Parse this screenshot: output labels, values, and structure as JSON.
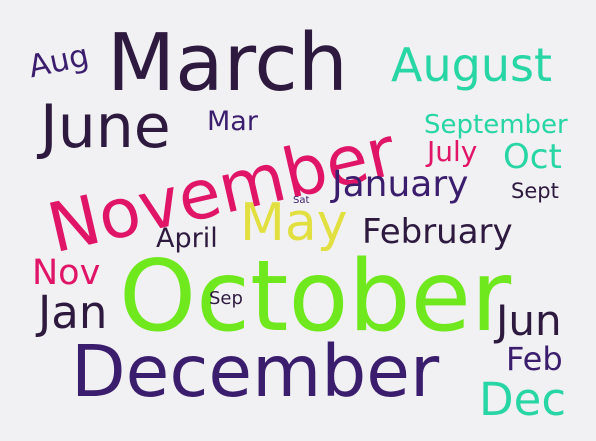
{
  "words": [
    {
      "text": "March",
      "color": "#2e1a3f"
    },
    {
      "text": "Aug",
      "color": "#3b1d6e"
    },
    {
      "text": "August",
      "color": "#27d6a4"
    },
    {
      "text": "June",
      "color": "#2e1a3f"
    },
    {
      "text": "Mar",
      "color": "#3b1d6e"
    },
    {
      "text": "September",
      "color": "#27d6a4"
    },
    {
      "text": "November",
      "color": "#e01567"
    },
    {
      "text": "July",
      "color": "#e01567"
    },
    {
      "text": "Oct",
      "color": "#27d6a4"
    },
    {
      "text": "January",
      "color": "#3b1d6e"
    },
    {
      "text": "Sat",
      "color": "#3b1d6e"
    },
    {
      "text": "Sept",
      "color": "#2e1a3f"
    },
    {
      "text": "May",
      "color": "#e2e040"
    },
    {
      "text": "February",
      "color": "#2e1a3f"
    },
    {
      "text": "April",
      "color": "#2e1a3f"
    },
    {
      "text": "Nov",
      "color": "#e01567"
    },
    {
      "text": "Jan",
      "color": "#2e1a3f"
    },
    {
      "text": "October",
      "color": "#6fe81e"
    },
    {
      "text": "Sep",
      "color": "#2e1a3f"
    },
    {
      "text": "Jun",
      "color": "#2e1a3f"
    },
    {
      "text": "December",
      "color": "#3b1d6e"
    },
    {
      "text": "Feb",
      "color": "#3b1d6e"
    },
    {
      "text": "Dec",
      "color": "#27d6a4"
    }
  ]
}
